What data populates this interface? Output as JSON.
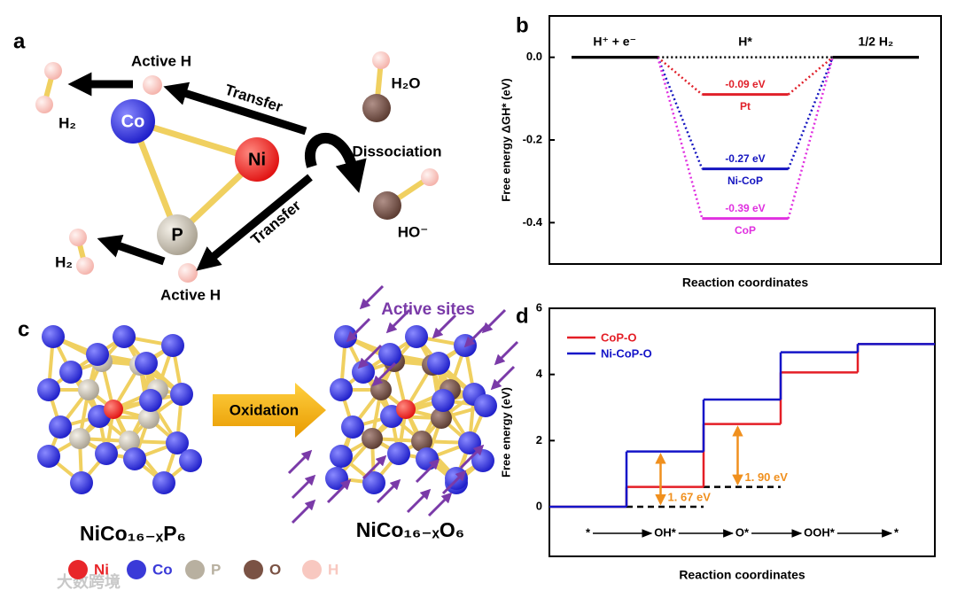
{
  "panel_labels": [
    "a",
    "b",
    "c",
    "d"
  ],
  "diagram_a": {
    "active_h_top": "Active H",
    "transfer_top": "Transfer",
    "h2o": "H₂O",
    "dissociation": "Dissociation",
    "ho": "HO⁻",
    "co": "Co",
    "ni": "Ni",
    "p": "P",
    "h2_top": "H₂",
    "h2_bottom": "H₂",
    "transfer_bottom": "Transfer",
    "active_h_bottom": "Active H"
  },
  "diagram_c": {
    "active_sites": "Active sites",
    "oxidation": "Oxidation",
    "formula_left": "NiCo₁₆₋ₓP₆",
    "formula_right": "NiCo₁₆₋ₓO₆",
    "legend": [
      {
        "name": "Ni",
        "color": "#e8262a"
      },
      {
        "name": "Co",
        "color": "#3a3ad8"
      },
      {
        "name": "P",
        "color": "#b8b0a0"
      },
      {
        "name": "O",
        "color": "#7a5244"
      },
      {
        "name": "H",
        "color": "#f8c8c0"
      }
    ]
  },
  "watermark": "大数跨境",
  "chart_data": [
    {
      "type": "energy-levels",
      "ylabel": "Free energy ΔGH* (eV)",
      "xlabel": "Reaction coordinates",
      "categories": [
        "H⁺ + e⁻",
        "H*",
        "1/2 H₂"
      ],
      "shared_level_color": "#000000",
      "series": [
        {
          "name": "Pt",
          "color": "#e0202a",
          "values": [
            0,
            -0.09,
            0
          ],
          "value_labels": [
            null,
            "-0.09 eV",
            null
          ]
        },
        {
          "name": "Ni-CoP",
          "color": "#1414c0",
          "values": [
            0,
            -0.27,
            0
          ],
          "value_labels": [
            null,
            "-0.27 eV",
            null
          ]
        },
        {
          "name": "CoP",
          "color": "#e030e0",
          "values": [
            0,
            -0.39,
            0
          ],
          "value_labels": [
            null,
            "-0.39 eV",
            null
          ]
        }
      ],
      "ylim": [
        -0.5,
        0.1
      ],
      "yticks": [
        {
          "value": 0,
          "label": "0.0"
        },
        -0.2,
        -0.4
      ]
    },
    {
      "type": "step",
      "ylabel": "Free energy (eV)",
      "xlabel": "Reaction coordinates",
      "categories": [
        "*",
        "OH*",
        "O*",
        "OOH*",
        "*"
      ],
      "legend": "upper left",
      "series": [
        {
          "name": "CoP-O",
          "color": "#e41e26",
          "values": [
            0,
            0.6,
            2.5,
            4.06,
            4.92
          ]
        },
        {
          "name": "Ni-CoP-O",
          "color": "#1414c8",
          "values": [
            0,
            1.67,
            3.24,
            4.67,
            4.92
          ]
        }
      ],
      "annotations": [
        "1. 67 eV",
        "1. 90 eV"
      ],
      "annotation_color": "#f0901e",
      "ylim": [
        -1.5,
        6
      ],
      "yticks": [
        0,
        2,
        4,
        6
      ]
    }
  ]
}
